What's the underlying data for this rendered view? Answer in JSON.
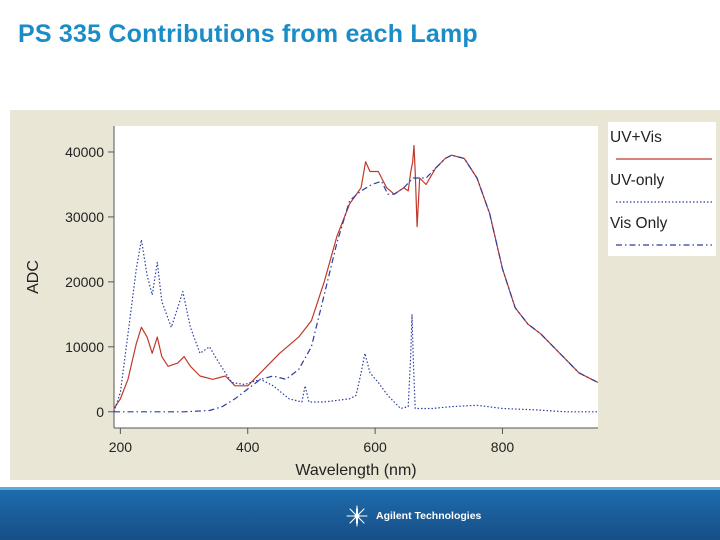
{
  "slide": {
    "title": "PS 335 Contributions from each Lamp"
  },
  "footer": {
    "brand_name": "Agilent Technologies",
    "logo_icon": "agilent-spark-icon",
    "bar_color": "#1b5f9c"
  },
  "chart_data": {
    "type": "line",
    "title": "",
    "xlabel": "Wavelength (nm)",
    "ylabel": "ADC",
    "xlim": [
      190,
      950
    ],
    "ylim": [
      -2500,
      44000
    ],
    "x_ticks": [
      200,
      400,
      600,
      800
    ],
    "y_ticks": [
      0,
      10000,
      20000,
      30000,
      40000
    ],
    "grid": false,
    "legend_position": "right",
    "series": [
      {
        "name": "UV+Vis",
        "color": "#c0392b",
        "style": "solid",
        "points": [
          [
            190,
            500
          ],
          [
            200,
            2000
          ],
          [
            212,
            5000
          ],
          [
            225,
            10500
          ],
          [
            233,
            13000
          ],
          [
            242,
            11500
          ],
          [
            250,
            9000
          ],
          [
            258,
            11500
          ],
          [
            265,
            8500
          ],
          [
            275,
            7000
          ],
          [
            290,
            7500
          ],
          [
            300,
            8500
          ],
          [
            310,
            7000
          ],
          [
            325,
            5500
          ],
          [
            345,
            5000
          ],
          [
            365,
            5500
          ],
          [
            380,
            4000
          ],
          [
            400,
            4000
          ],
          [
            420,
            6000
          ],
          [
            450,
            9000
          ],
          [
            480,
            11500
          ],
          [
            500,
            14000
          ],
          [
            520,
            20000
          ],
          [
            540,
            27000
          ],
          [
            560,
            32000
          ],
          [
            578,
            34500
          ],
          [
            585,
            38500
          ],
          [
            592,
            37000
          ],
          [
            605,
            37000
          ],
          [
            618,
            34500
          ],
          [
            630,
            33500
          ],
          [
            645,
            34500
          ],
          [
            652,
            34000
          ],
          [
            656,
            37000
          ],
          [
            659,
            38500
          ],
          [
            661,
            41000
          ],
          [
            663,
            37000
          ],
          [
            666,
            28500
          ],
          [
            670,
            36000
          ],
          [
            680,
            35000
          ],
          [
            695,
            37500
          ],
          [
            710,
            39000
          ],
          [
            720,
            39500
          ],
          [
            740,
            39000
          ],
          [
            760,
            36000
          ],
          [
            780,
            30500
          ],
          [
            800,
            22000
          ],
          [
            820,
            16000
          ],
          [
            840,
            13500
          ],
          [
            860,
            12000
          ],
          [
            880,
            10000
          ],
          [
            900,
            8000
          ],
          [
            920,
            6000
          ],
          [
            940,
            5000
          ],
          [
            950,
            4500
          ]
        ]
      },
      {
        "name": "UV-only",
        "color": "#2b3fa0",
        "style": "dotted",
        "points": [
          [
            190,
            0
          ],
          [
            200,
            3000
          ],
          [
            212,
            12000
          ],
          [
            225,
            22000
          ],
          [
            233,
            26500
          ],
          [
            242,
            21000
          ],
          [
            250,
            18000
          ],
          [
            258,
            23000
          ],
          [
            265,
            17000
          ],
          [
            280,
            13000
          ],
          [
            290,
            16000
          ],
          [
            298,
            18500
          ],
          [
            310,
            13000
          ],
          [
            325,
            9000
          ],
          [
            340,
            10000
          ],
          [
            355,
            7500
          ],
          [
            375,
            4500
          ],
          [
            395,
            4200
          ],
          [
            420,
            5000
          ],
          [
            440,
            4000
          ],
          [
            465,
            2000
          ],
          [
            485,
            1500
          ],
          [
            490,
            4000
          ],
          [
            496,
            1500
          ],
          [
            520,
            1500
          ],
          [
            560,
            2000
          ],
          [
            570,
            2500
          ],
          [
            578,
            6000
          ],
          [
            584,
            9000
          ],
          [
            592,
            6000
          ],
          [
            605,
            4500
          ],
          [
            620,
            2500
          ],
          [
            640,
            500
          ],
          [
            652,
            800
          ],
          [
            656,
            9000
          ],
          [
            658,
            15000
          ],
          [
            660,
            8000
          ],
          [
            663,
            500
          ],
          [
            690,
            500
          ],
          [
            720,
            800
          ],
          [
            760,
            1000
          ],
          [
            800,
            500
          ],
          [
            850,
            300
          ],
          [
            900,
            0
          ],
          [
            950,
            0
          ]
        ]
      },
      {
        "name": "Vis Only",
        "color": "#2b3fa0",
        "style": "dash-dot",
        "points": [
          [
            190,
            0
          ],
          [
            250,
            0
          ],
          [
            300,
            0
          ],
          [
            340,
            200
          ],
          [
            360,
            800
          ],
          [
            380,
            2000
          ],
          [
            400,
            3500
          ],
          [
            420,
            5000
          ],
          [
            440,
            5500
          ],
          [
            460,
            5000
          ],
          [
            480,
            6500
          ],
          [
            500,
            10000
          ],
          [
            520,
            18000
          ],
          [
            540,
            26000
          ],
          [
            560,
            32500
          ],
          [
            578,
            34000
          ],
          [
            595,
            35000
          ],
          [
            610,
            35500
          ],
          [
            620,
            33500
          ],
          [
            630,
            33500
          ],
          [
            645,
            34500
          ],
          [
            660,
            36000
          ],
          [
            680,
            36000
          ],
          [
            695,
            37500
          ],
          [
            710,
            39000
          ],
          [
            720,
            39500
          ],
          [
            740,
            39000
          ],
          [
            760,
            36000
          ],
          [
            780,
            30500
          ],
          [
            800,
            22000
          ],
          [
            820,
            16000
          ],
          [
            840,
            13500
          ],
          [
            860,
            12000
          ],
          [
            880,
            10000
          ],
          [
            900,
            8000
          ],
          [
            920,
            6000
          ],
          [
            940,
            5000
          ],
          [
            950,
            4500
          ]
        ]
      }
    ]
  }
}
